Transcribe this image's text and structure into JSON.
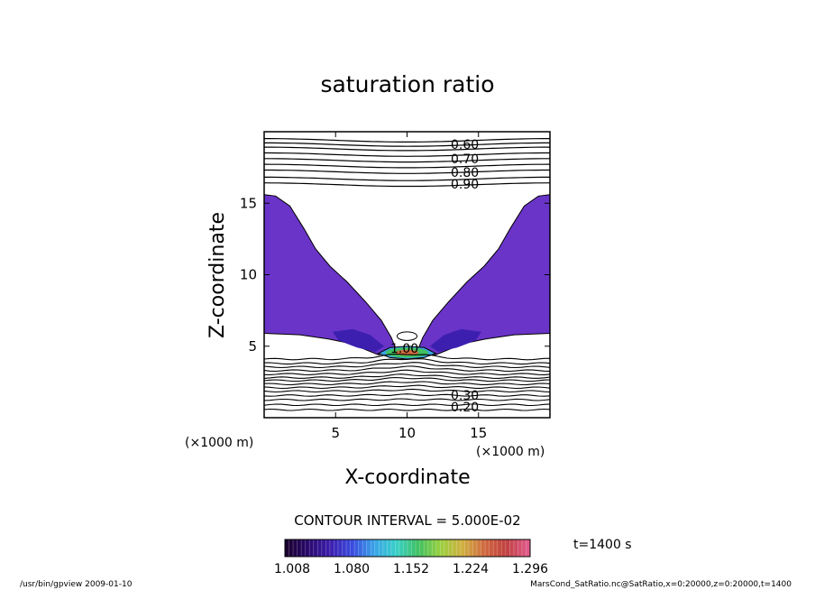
{
  "chart_data": {
    "type": "contour",
    "title": "saturation ratio",
    "xlabel": "X-coordinate",
    "ylabel": "Z-coordinate",
    "x_unit": "(×1000 m)",
    "y_unit": "(×1000 m)",
    "xlim": [
      0,
      20
    ],
    "ylim": [
      0,
      20
    ],
    "xticks": [
      5,
      10,
      15
    ],
    "yticks": [
      5,
      10,
      15
    ],
    "contour_interval_text": "CONTOUR INTERVAL = 5.000E-02",
    "contour_labels_top": [
      "0.60",
      "0.70",
      "0.80",
      "0.90"
    ],
    "contour_label_center": "1.00",
    "contour_labels_bottom": [
      "0.30",
      "0.20"
    ],
    "colorbar": {
      "min": 1.008,
      "max": 1.296,
      "tick_labels": [
        "1.008",
        "1.080",
        "1.152",
        "1.224",
        "1.296"
      ],
      "colors": [
        "#1a0030",
        "#2a0a6e",
        "#3d1fb0",
        "#3a4de0",
        "#3aa6e8",
        "#3ad0c8",
        "#40c060",
        "#9ad040",
        "#d0b040",
        "#d06a40",
        "#c04040",
        "#e05a8a"
      ]
    },
    "time_label": "t=1400 s",
    "footer_left": "/usr/bin/gpview   2009-01-10",
    "footer_right": "MarsCond_SatRatio.nc@SatRatio,x=0:20000,z=0:20000,t=1400"
  }
}
